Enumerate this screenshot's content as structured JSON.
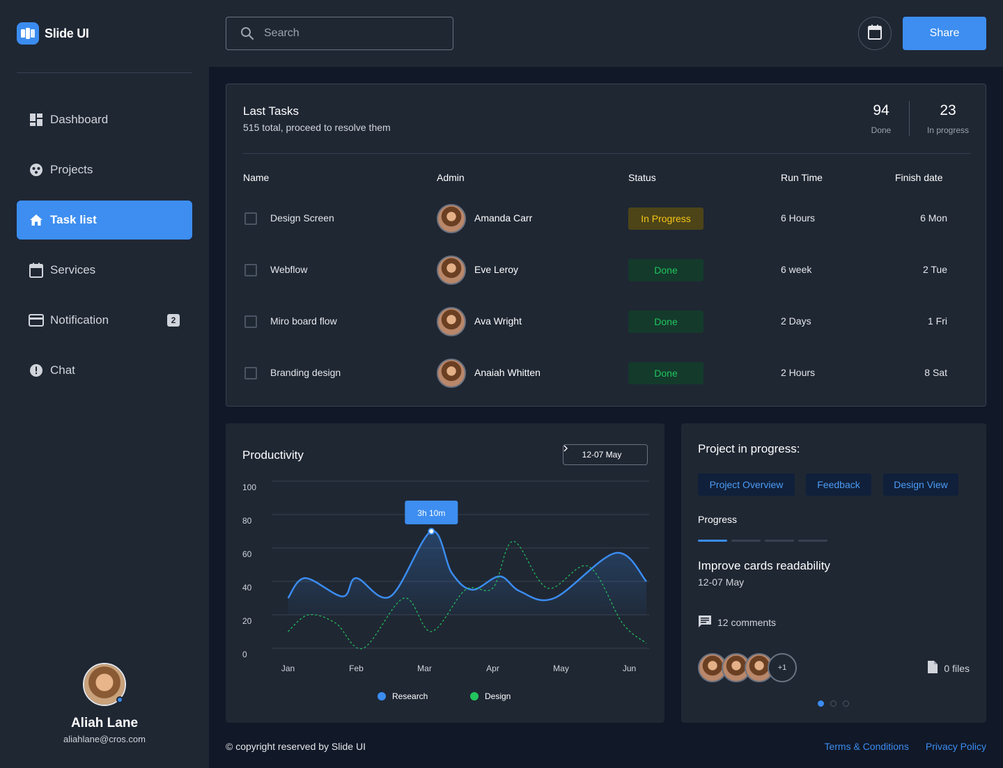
{
  "app": {
    "name": "Slide UI"
  },
  "sidebar": {
    "items": [
      {
        "label": "Dashboard",
        "icon": "dashboard-icon"
      },
      {
        "label": "Projects",
        "icon": "projects-icon"
      },
      {
        "label": "Task list",
        "icon": "home-icon",
        "active": true
      },
      {
        "label": "Services",
        "icon": "calendar-icon"
      },
      {
        "label": "Notification",
        "icon": "card-icon",
        "badge": "2"
      },
      {
        "label": "Chat",
        "icon": "alert-icon"
      }
    ],
    "user": {
      "name": "Aliah Lane",
      "email": "aliahlane@cros.com"
    }
  },
  "topbar": {
    "search_placeholder": "Search",
    "share_label": "Share"
  },
  "tasks": {
    "title": "Last Tasks",
    "subtitle": "515 total, proceed to resolve them",
    "stats": [
      {
        "value": "94",
        "label": "Done"
      },
      {
        "value": "23",
        "label": "In progress"
      }
    ],
    "columns": [
      "Name",
      "Admin",
      "Status",
      "Run Time",
      "Finish date"
    ],
    "rows": [
      {
        "name": "Design Screen",
        "admin": "Amanda Carr",
        "status": "In Progress",
        "status_type": "progress",
        "run_time": "6 Hours",
        "finish": "6 Mon"
      },
      {
        "name": "Webflow",
        "admin": "Eve Leroy",
        "status": "Done",
        "status_type": "done",
        "run_time": "6 week",
        "finish": "2 Tue"
      },
      {
        "name": "Miro board flow",
        "admin": "Ava Wright",
        "status": "Done",
        "status_type": "done",
        "run_time": "2 Days",
        "finish": "1 Fri"
      },
      {
        "name": "Branding design",
        "admin": "Anaiah Whitten",
        "status": "Done",
        "status_type": "done",
        "run_time": "2 Hours",
        "finish": "8 Sat"
      }
    ]
  },
  "productivity": {
    "title": "Productivity",
    "range_label": "12-07 May",
    "tooltip": "3h 10m"
  },
  "chart_data": {
    "type": "line",
    "x": [
      "Jan",
      "Feb",
      "Mar",
      "Apr",
      "May",
      "Jun"
    ],
    "ylim": [
      0,
      100
    ],
    "yticks": [
      0,
      20,
      40,
      60,
      80,
      100
    ],
    "grid": true,
    "legend_position": "bottom",
    "series": [
      {
        "name": "Research",
        "color": "#3b8cf0",
        "style": "solid-area",
        "points": [
          [
            0,
            30
          ],
          [
            0.25,
            42
          ],
          [
            0.8,
            31
          ],
          [
            1,
            42
          ],
          [
            1.5,
            31
          ],
          [
            2.1,
            70
          ],
          [
            2.4,
            45
          ],
          [
            2.7,
            35
          ],
          [
            3.1,
            43
          ],
          [
            3.4,
            34
          ],
          [
            3.9,
            30
          ],
          [
            4.8,
            57
          ],
          [
            5.25,
            40
          ]
        ]
      },
      {
        "name": "Design",
        "color": "#22c55e",
        "style": "dashed",
        "points": [
          [
            0,
            10
          ],
          [
            0.3,
            20
          ],
          [
            0.7,
            15
          ],
          [
            1.1,
            0
          ],
          [
            1.7,
            30
          ],
          [
            2.1,
            10
          ],
          [
            2.6,
            35
          ],
          [
            3,
            36
          ],
          [
            3.3,
            64
          ],
          [
            3.8,
            36
          ],
          [
            4.4,
            49
          ],
          [
            4.9,
            15
          ],
          [
            5.25,
            3
          ]
        ]
      }
    ]
  },
  "project": {
    "title": "Project in progress:",
    "tabs": [
      "Project Overview",
      "Feedback",
      "Design View"
    ],
    "progress_label": "Progress",
    "progress_step": 1,
    "progress_total": 4,
    "task_title": "Improve cards readability",
    "task_date": "12-07 May",
    "comments": "12 comments",
    "extra_members": "+1",
    "files": "0 files",
    "page_index": 1,
    "page_total": 3
  },
  "footer": {
    "copyright": "© copyright reserved by Slide UI",
    "links": [
      "Terms & Conditions",
      "Privacy Policy"
    ]
  },
  "colors": {
    "accent": "#3b8cf0",
    "sidebar": "#1f2733",
    "background": "#111827",
    "done": "#22c55e",
    "progress": "#f5c518"
  }
}
